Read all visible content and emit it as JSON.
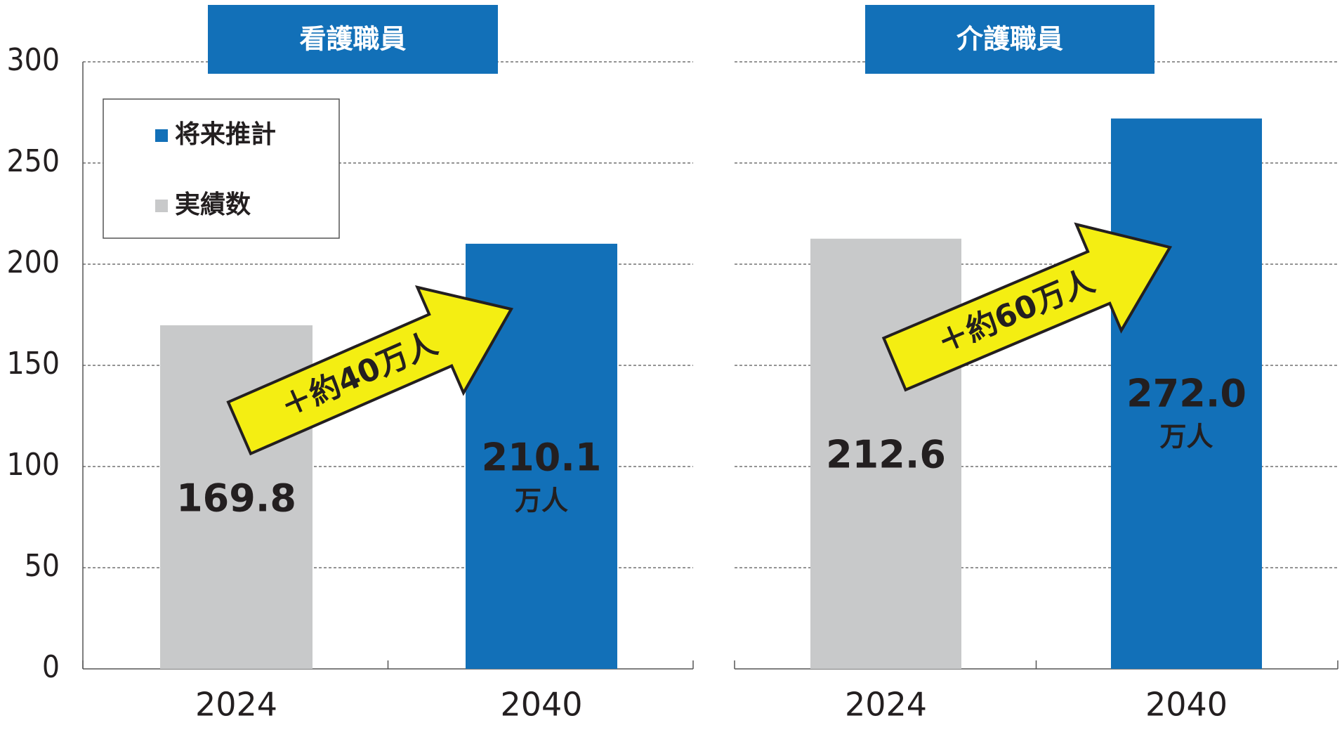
{
  "chart_data": [
    {
      "type": "bar",
      "title": "看護職員",
      "categories": [
        "2024",
        "2040"
      ],
      "values": [
        169.8,
        210.1
      ],
      "value_labels": [
        "169.8",
        [
          "210.1",
          "万人"
        ]
      ],
      "colors": [
        "#c8c9ca",
        "#1270b8"
      ],
      "ylim": [
        0,
        300
      ],
      "yticks": [
        0,
        50,
        100,
        150,
        200,
        250,
        300
      ],
      "grid": true,
      "y_axis_labels": true,
      "annotation": "＋約40万人",
      "legend": [
        {
          "name": "将来推計",
          "color": "#1270b8"
        },
        {
          "name": "実績数",
          "color": "#c8c9ca"
        }
      ]
    },
    {
      "type": "bar",
      "title": "介護職員",
      "categories": [
        "2024",
        "2040"
      ],
      "values": [
        212.6,
        272.0
      ],
      "value_labels": [
        "212.6",
        [
          "272.0",
          "万人"
        ]
      ],
      "colors": [
        "#c8c9ca",
        "#1270b8"
      ],
      "ylim": [
        0,
        300
      ],
      "yticks": [
        0,
        50,
        100,
        150,
        200,
        250,
        300
      ],
      "grid": true,
      "y_axis_labels": false,
      "annotation": "＋約60万人"
    }
  ]
}
